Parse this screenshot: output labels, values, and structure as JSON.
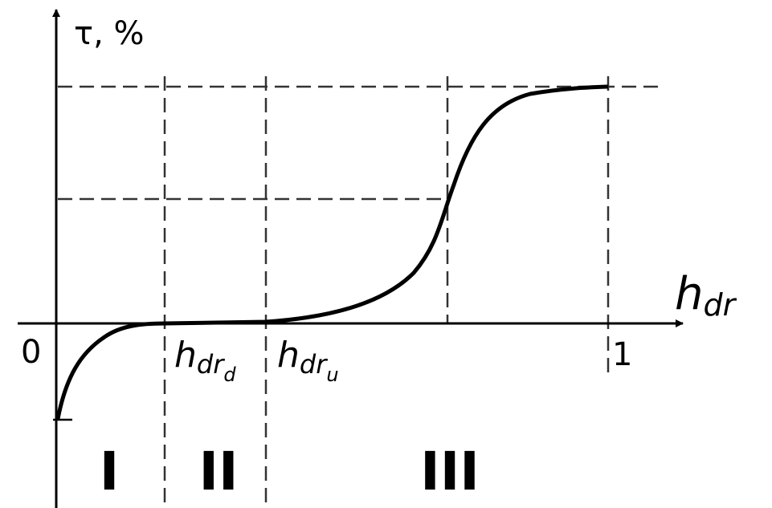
{
  "y_axis_label": "τ, %",
  "x_axis_label": {
    "main": "h",
    "sub": "dr"
  },
  "origin_label": "0",
  "x_end_label": "1",
  "h_down_label": {
    "main": "h",
    "sub": "dr",
    "subsub": "d"
  },
  "h_up_label": {
    "main": "h",
    "sub": "dr",
    "subsub": "u"
  },
  "regions": [
    "I",
    "II",
    "III"
  ],
  "colors": {
    "line": "#000000",
    "dash": "#333333"
  }
}
